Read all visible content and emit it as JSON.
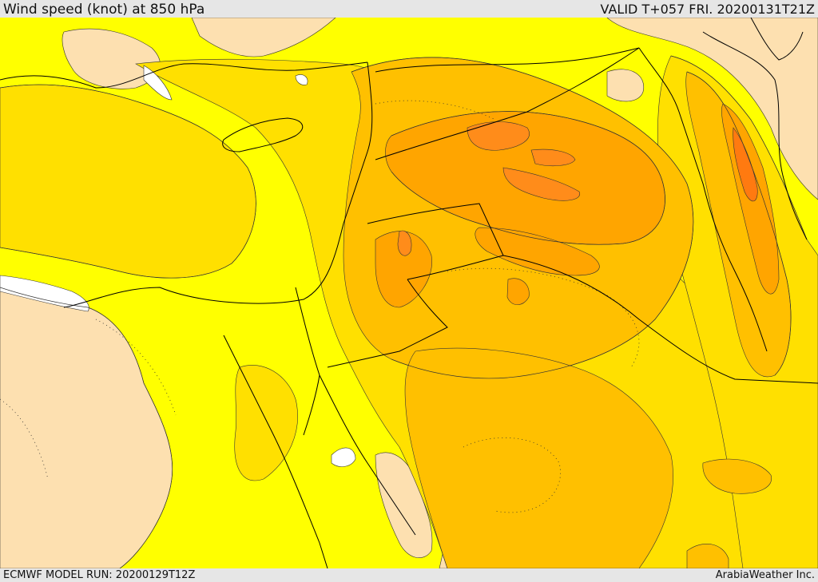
{
  "header": {
    "title": "Wind speed (knot) at 850 hPa",
    "valid": "VALID T+057 FRI. 20200131T21Z"
  },
  "footer": {
    "model_run": "ECMWF MODEL RUN: 20200129T12Z",
    "credit": "ArabiaWeather Inc."
  },
  "colors": {
    "peach": "#fde0b0",
    "yellow": "#ffff00",
    "gold": "#ffe000",
    "amber": "#ffc000",
    "orange": "#ffa500",
    "dark_orange": "#ff8c1a",
    "red_orange": "#ff7a10",
    "missing": "#ffffff",
    "boundary": "#000000"
  }
}
